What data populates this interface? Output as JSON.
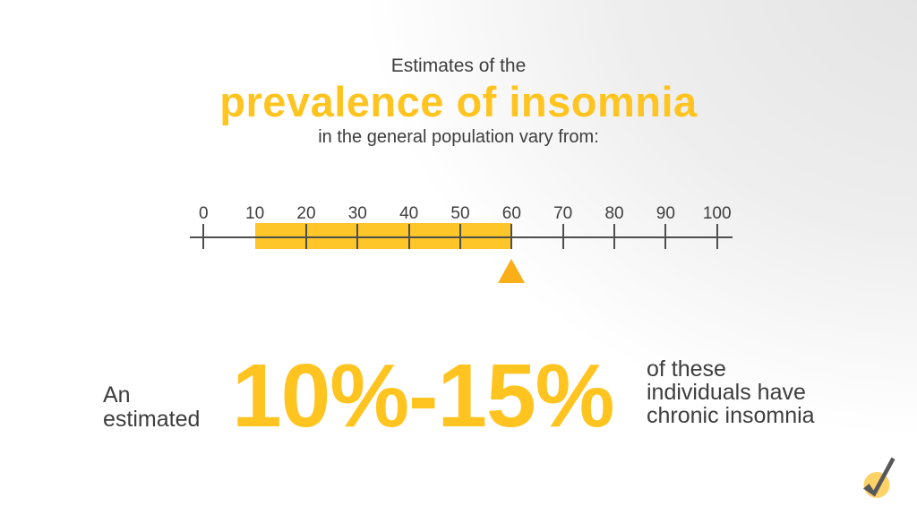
{
  "header": {
    "line1": "Estimates of the",
    "line2": "prevalence of insomnia",
    "line3": "in the general population vary from:"
  },
  "chart_data": {
    "type": "bar",
    "subtype": "number-line-range",
    "orientation": "horizontal",
    "title": "Estimates of the prevalence of insomnia in the general population vary from:",
    "axis": {
      "min": 0,
      "max": 100,
      "tick_interval": 10,
      "tick_values": [
        0,
        10,
        20,
        30,
        40,
        50,
        60,
        70,
        80,
        90,
        100
      ],
      "tick_labels": [
        "0",
        "10",
        "20",
        "30",
        "40",
        "50",
        "60",
        "70",
        "80",
        "90",
        "100"
      ],
      "hidden_ticks": [
        10
      ]
    },
    "range": {
      "start": 10,
      "end": 60
    },
    "marker": {
      "value": 60,
      "shape": "triangle-up"
    },
    "grid": false,
    "legend": "none"
  },
  "stat": {
    "prefix_line1": "An",
    "prefix_line2": "estimated",
    "value": "10%-15%",
    "suffix_line1": "of these",
    "suffix_line2": "individuals have",
    "suffix_line3": "chronic insomnia"
  },
  "icons": {
    "logo": "check-circle-icon"
  },
  "colors": {
    "accent_yellow": "#ffc420",
    "band_yellow": "#ffc629",
    "marker_orange": "#faae17",
    "text_dark": "#3d3d3d",
    "line_dark": "#4e4e4e",
    "logo_circle": "#fdd269",
    "logo_check": "#58585a",
    "bg_corner_gray": "#e3e3e3"
  }
}
